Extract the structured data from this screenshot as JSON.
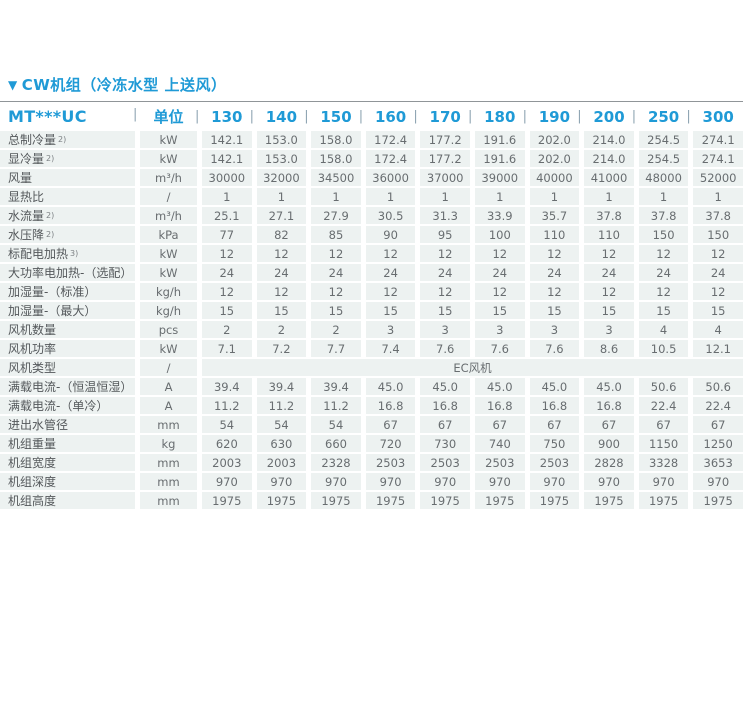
{
  "colors": {
    "accent": "#1F9AD6",
    "rule": "#909598",
    "pipe": "#8FA5B3",
    "cell_bg": "#EDF2F1",
    "label_text": "#54585B",
    "value_text": "#686D70"
  },
  "section": {
    "marker": "▼",
    "title": "CW机组（冷冻水型 上送风）"
  },
  "table": {
    "model_header": "MT***UC",
    "unit_header": "单位",
    "columns": [
      "130",
      "140",
      "150",
      "160",
      "170",
      "180",
      "190",
      "200",
      "250",
      "300"
    ],
    "rows": [
      {
        "label": "总制冷量",
        "sup": "2)",
        "unit": "kW",
        "values": [
          "142.1",
          "153.0",
          "158.0",
          "172.4",
          "177.2",
          "191.6",
          "202.0",
          "214.0",
          "254.5",
          "274.1"
        ]
      },
      {
        "label": "显冷量",
        "sup": "2)",
        "unit": "kW",
        "values": [
          "142.1",
          "153.0",
          "158.0",
          "172.4",
          "177.2",
          "191.6",
          "202.0",
          "214.0",
          "254.5",
          "274.1"
        ]
      },
      {
        "label": "风量",
        "unit": "m³/h",
        "values": [
          "30000",
          "32000",
          "34500",
          "36000",
          "37000",
          "39000",
          "40000",
          "41000",
          "48000",
          "52000"
        ]
      },
      {
        "label": "显热比",
        "unit": "/",
        "values": [
          "1",
          "1",
          "1",
          "1",
          "1",
          "1",
          "1",
          "1",
          "1",
          "1"
        ]
      },
      {
        "label": "水流量",
        "sup": "2)",
        "unit": "m³/h",
        "values": [
          "25.1",
          "27.1",
          "27.9",
          "30.5",
          "31.3",
          "33.9",
          "35.7",
          "37.8",
          "37.8",
          "37.8"
        ]
      },
      {
        "label": "水压降",
        "sup": "2)",
        "unit": "kPa",
        "values": [
          "77",
          "82",
          "85",
          "90",
          "95",
          "100",
          "110",
          "110",
          "150",
          "150"
        ]
      },
      {
        "label": "标配电加热",
        "sup": "3)",
        "unit": "kW",
        "values": [
          "12",
          "12",
          "12",
          "12",
          "12",
          "12",
          "12",
          "12",
          "12",
          "12"
        ]
      },
      {
        "label": "大功率电加热-（选配）",
        "unit": "kW",
        "values": [
          "24",
          "24",
          "24",
          "24",
          "24",
          "24",
          "24",
          "24",
          "24",
          "24"
        ]
      },
      {
        "label": "加湿量-（标准）",
        "unit": "kg/h",
        "values": [
          "12",
          "12",
          "12",
          "12",
          "12",
          "12",
          "12",
          "12",
          "12",
          "12"
        ]
      },
      {
        "label": "加湿量-（最大）",
        "unit": "kg/h",
        "values": [
          "15",
          "15",
          "15",
          "15",
          "15",
          "15",
          "15",
          "15",
          "15",
          "15"
        ]
      },
      {
        "label": "风机数量",
        "unit": "pcs",
        "values": [
          "2",
          "2",
          "2",
          "3",
          "3",
          "3",
          "3",
          "3",
          "4",
          "4"
        ]
      },
      {
        "label": "风机功率",
        "unit": "kW",
        "values": [
          "7.1",
          "7.2",
          "7.7",
          "7.4",
          "7.6",
          "7.6",
          "7.6",
          "8.6",
          "10.5",
          "12.1"
        ]
      },
      {
        "label": "风机类型",
        "unit": "/",
        "merged_value": "EC风机"
      },
      {
        "label": "满载电流-（恒温恒湿）",
        "unit": "A",
        "values": [
          "39.4",
          "39.4",
          "39.4",
          "45.0",
          "45.0",
          "45.0",
          "45.0",
          "45.0",
          "50.6",
          "50.6"
        ]
      },
      {
        "label": "满载电流-（单冷）",
        "unit": "A",
        "values": [
          "11.2",
          "11.2",
          "11.2",
          "16.8",
          "16.8",
          "16.8",
          "16.8",
          "16.8",
          "22.4",
          "22.4"
        ]
      },
      {
        "label": "进出水管径",
        "unit": "mm",
        "values": [
          "54",
          "54",
          "54",
          "67",
          "67",
          "67",
          "67",
          "67",
          "67",
          "67"
        ]
      },
      {
        "label": "机组重量",
        "unit": "kg",
        "values": [
          "620",
          "630",
          "660",
          "720",
          "730",
          "740",
          "750",
          "900",
          "1150",
          "1250"
        ]
      },
      {
        "label": "机组宽度",
        "unit": "mm",
        "values": [
          "2003",
          "2003",
          "2328",
          "2503",
          "2503",
          "2503",
          "2503",
          "2828",
          "3328",
          "3653"
        ]
      },
      {
        "label": "机组深度",
        "unit": "mm",
        "values": [
          "970",
          "970",
          "970",
          "970",
          "970",
          "970",
          "970",
          "970",
          "970",
          "970"
        ]
      },
      {
        "label": "机组高度",
        "unit": "mm",
        "values": [
          "1975",
          "1975",
          "1975",
          "1975",
          "1975",
          "1975",
          "1975",
          "1975",
          "1975",
          "1975"
        ]
      }
    ]
  }
}
